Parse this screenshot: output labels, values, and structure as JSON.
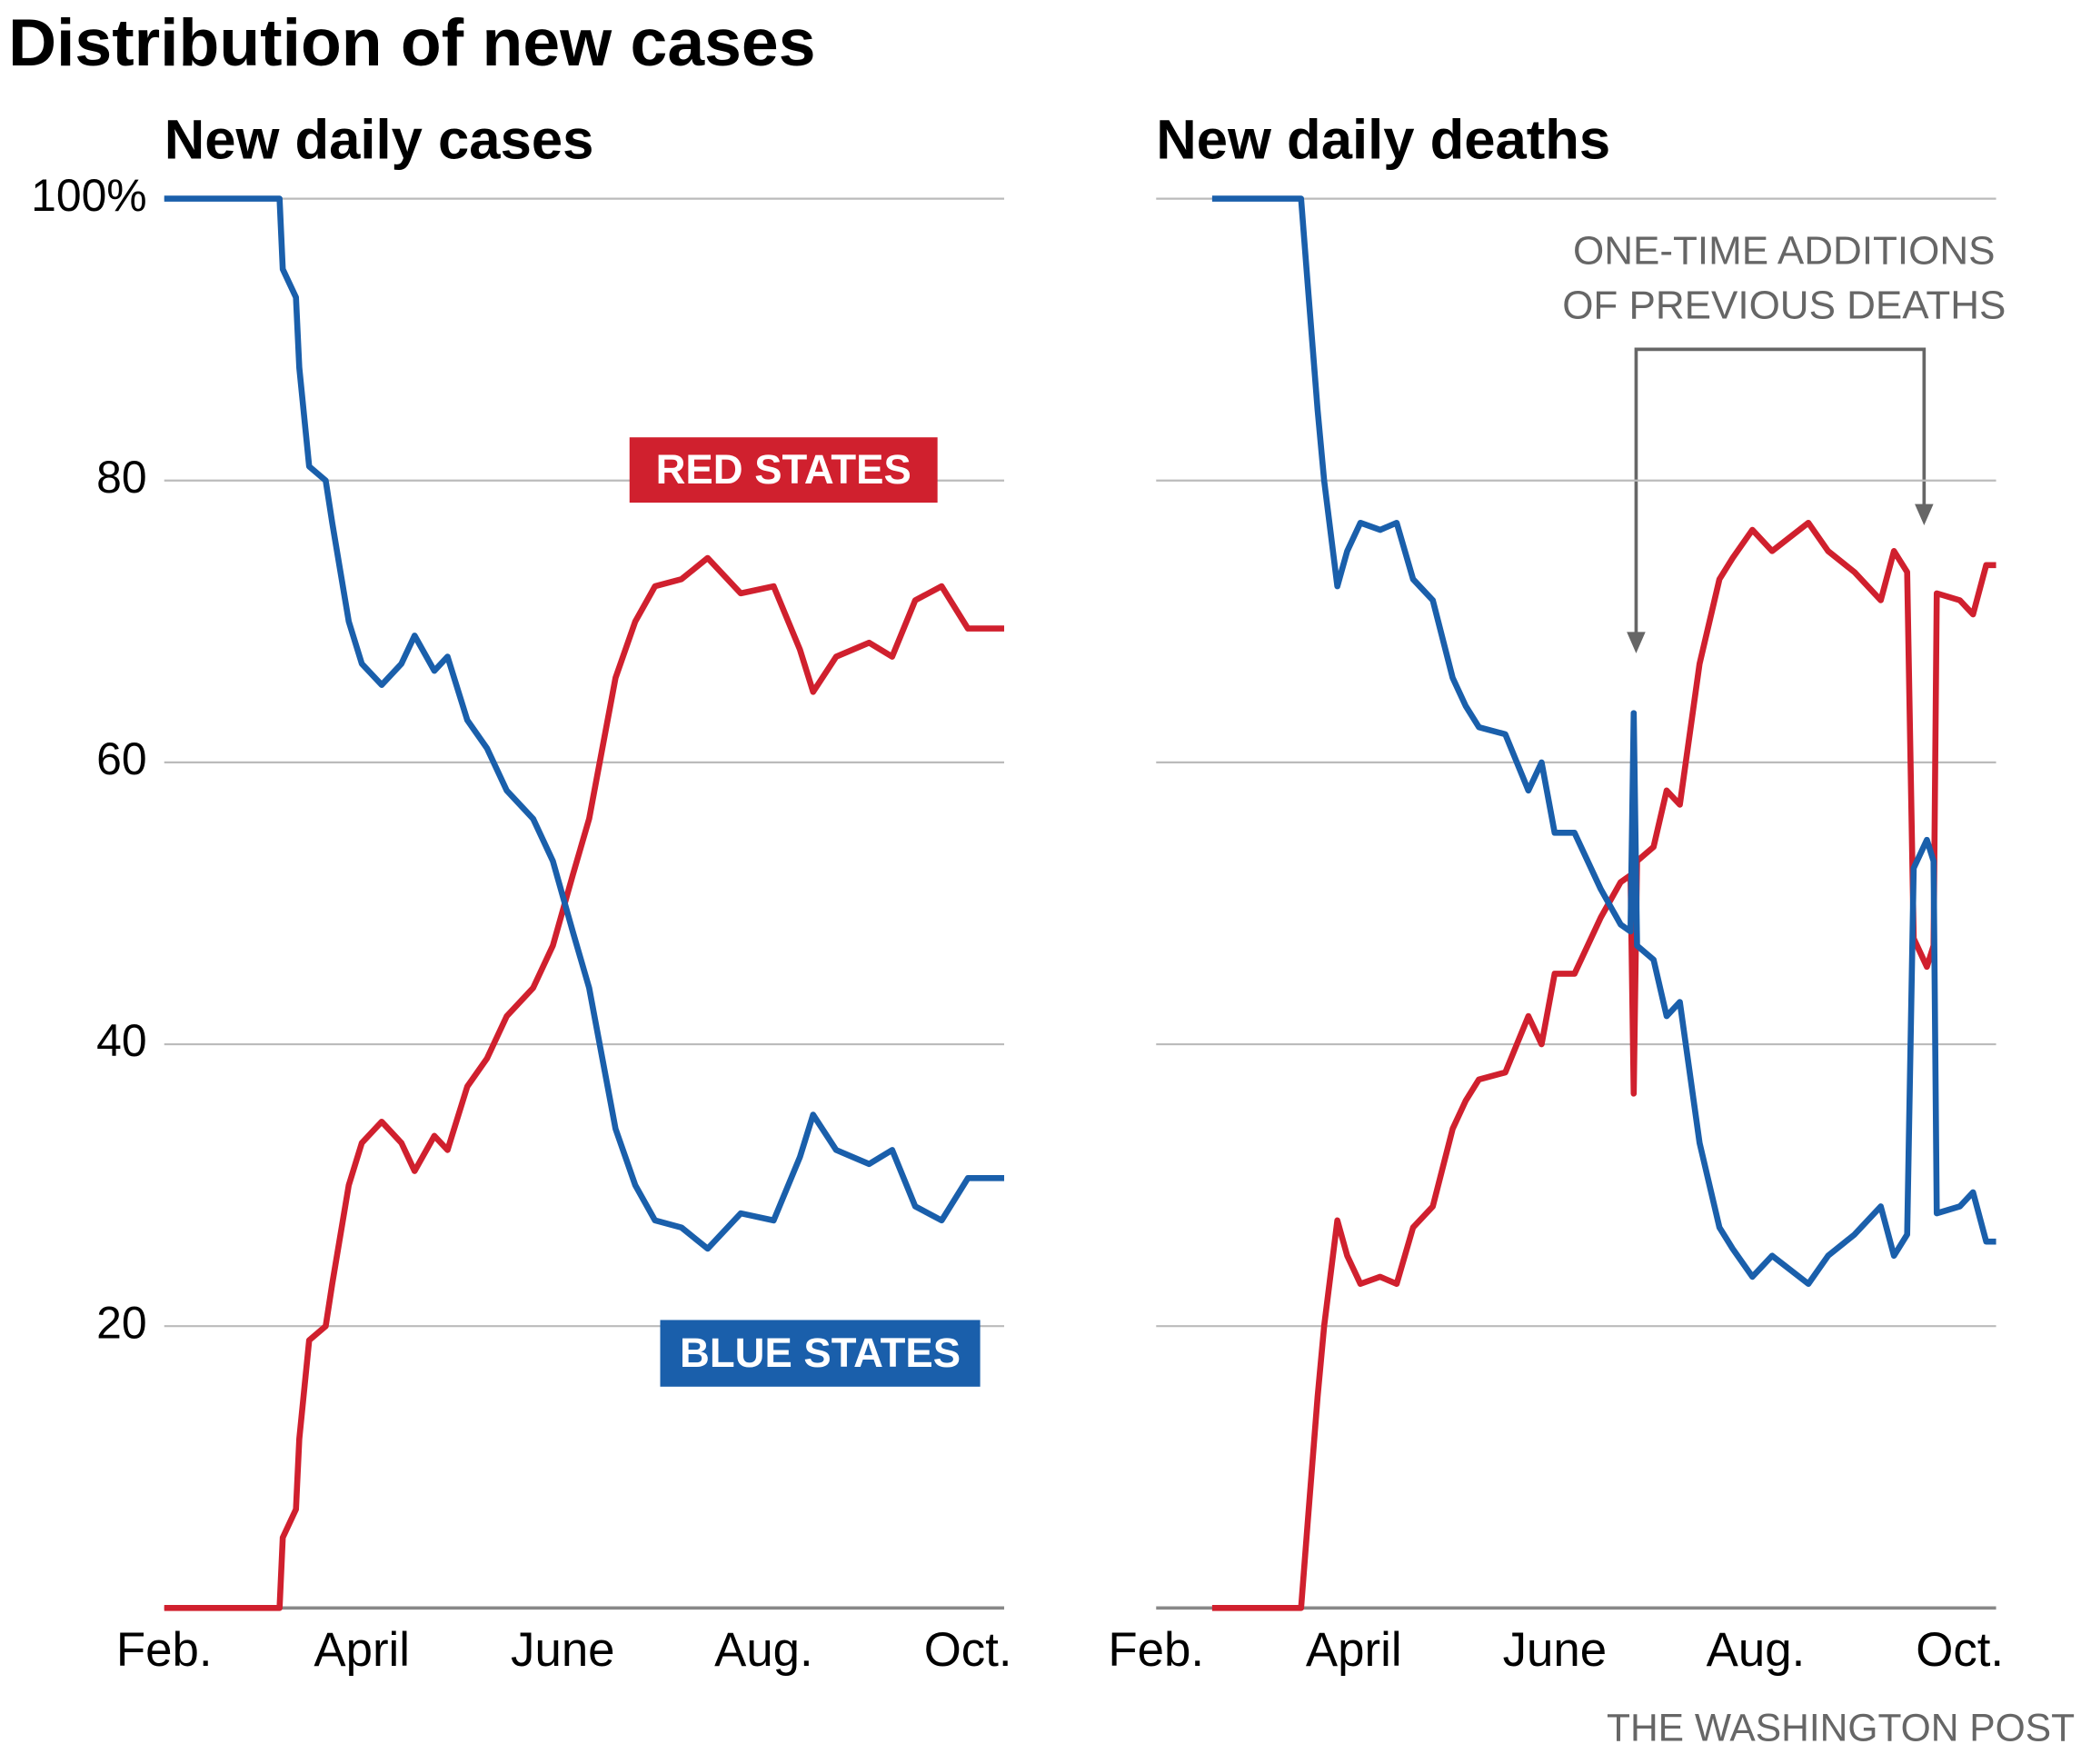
{
  "title": "Distribution of new cases",
  "source": "THE WASHINGTON POST",
  "chart_data": [
    {
      "type": "line",
      "title": "New daily cases",
      "x": [
        0,
        35,
        36,
        40,
        41,
        44,
        49,
        51,
        56,
        60,
        66,
        72,
        76,
        82,
        86,
        92,
        98,
        104,
        112,
        118,
        124,
        129,
        133,
        137,
        143,
        149,
        157,
        165,
        175,
        185,
        193,
        197,
        204,
        214,
        221,
        228,
        236,
        244,
        255
      ],
      "xlim": [
        0,
        255
      ],
      "xticks": [
        {
          "value": 0,
          "label": "Feb."
        },
        {
          "value": 60,
          "label": "April"
        },
        {
          "value": 121,
          "label": "June"
        },
        {
          "value": 182,
          "label": "Aug."
        },
        {
          "value": 244,
          "label": "Oct."
        }
      ],
      "ylim": [
        0,
        100
      ],
      "yticks": [
        {
          "value": 100,
          "label": "100%"
        },
        80,
        60,
        40,
        20
      ],
      "grid": true,
      "series": [
        {
          "name": "RED STATES",
          "color": "#d0202e",
          "values": [
            0,
            0,
            5,
            7,
            12,
            19,
            20,
            23,
            30,
            33,
            34.5,
            33,
            31,
            33.5,
            32.5,
            37,
            39,
            42,
            44,
            47,
            52,
            56,
            61,
            66,
            70,
            72.5,
            73,
            74.5,
            72,
            72.5,
            68,
            65,
            67.5,
            68.5,
            67.5,
            71.5,
            72.5,
            69.5,
            69.5
          ]
        },
        {
          "name": "BLUE STATES",
          "color": "#1a5fab",
          "values": [
            100,
            100,
            95,
            93,
            88,
            81,
            80,
            77,
            70,
            67,
            65.5,
            67,
            69,
            66.5,
            67.5,
            63,
            61,
            58,
            56,
            53,
            48,
            44,
            39,
            34,
            30,
            27.5,
            27,
            25.5,
            28,
            27.5,
            32,
            35,
            32.5,
            31.5,
            32.5,
            28.5,
            27.5,
            30.5,
            30.5
          ]
        }
      ]
    },
    {
      "type": "line",
      "title": "New daily deaths",
      "x": [
        17,
        44,
        46,
        49,
        51,
        55,
        58,
        62,
        68,
        73,
        78,
        84,
        90,
        94,
        98,
        106,
        113,
        117,
        121,
        127,
        135,
        141,
        144,
        145,
        146,
        151,
        155,
        159,
        165,
        171,
        175,
        181,
        187,
        198,
        204,
        212,
        220,
        224,
        228,
        230,
        234,
        236,
        237,
        244,
        248,
        252,
        255
      ],
      "xlim": [
        0,
        255
      ],
      "xticks": [
        {
          "value": 0,
          "label": "Feb."
        },
        {
          "value": 60,
          "label": "April"
        },
        {
          "value": 121,
          "label": "June"
        },
        {
          "value": 182,
          "label": "Aug."
        },
        {
          "value": 244,
          "label": "Oct."
        }
      ],
      "ylim": [
        0,
        100
      ],
      "gridlines": [
        100,
        80,
        60,
        40,
        20
      ],
      "grid": true,
      "annotation": [
        "ONE-TIME ADDITIONS",
        "OF PREVIOUS DEATHS"
      ],
      "series": [
        {
          "color": "#d0202e",
          "values": [
            0,
            0,
            6,
            15,
            20,
            27.5,
            25,
            23,
            23.5,
            23,
            27,
            28.5,
            34,
            36,
            37.5,
            38,
            42,
            40,
            45,
            45,
            49,
            51.5,
            52,
            36.5,
            53,
            54,
            58,
            57,
            67,
            73,
            74.5,
            76.5,
            75,
            77,
            75,
            73.5,
            71.5,
            75,
            73.5,
            47.5,
            45.5,
            47,
            72,
            71.5,
            70.5,
            74,
            74
          ]
        },
        {
          "color": "#1a5fab",
          "values": [
            100,
            100,
            94,
            85,
            80,
            72.5,
            75,
            77,
            76.5,
            77,
            73,
            71.5,
            66,
            64,
            62.5,
            62,
            58,
            60,
            55,
            55,
            51,
            48.5,
            48,
            63.5,
            47,
            46,
            42,
            43,
            33,
            27,
            25.5,
            23.5,
            25,
            23,
            25,
            26.5,
            28.5,
            25,
            26.5,
            52.5,
            54.5,
            53,
            28,
            28.5,
            29.5,
            26,
            26
          ]
        }
      ]
    }
  ]
}
